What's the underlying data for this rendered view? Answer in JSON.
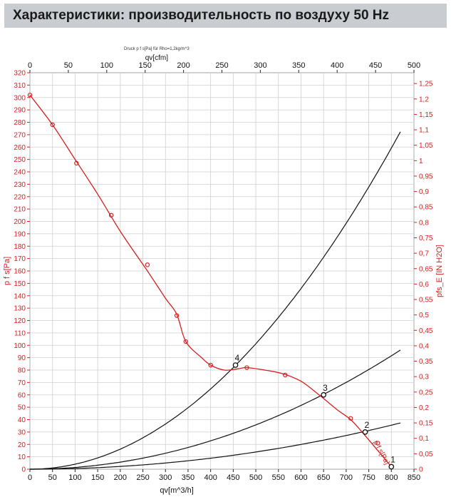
{
  "header": {
    "title": "Характеристики: производительность по воздуху 50 Hz"
  },
  "chart_data": {
    "type": "line",
    "note": "Druck p f s[Pa] für Rho=1,2kg/m^3",
    "x_axis": {
      "label": "qv[m^3/h]",
      "range": [
        0,
        850
      ],
      "ticks": [
        0,
        50,
        100,
        150,
        200,
        250,
        300,
        350,
        400,
        450,
        500,
        550,
        600,
        650,
        700,
        750,
        800,
        850
      ]
    },
    "x2_axis": {
      "label": "qv[cfm]",
      "range": [
        0,
        500
      ],
      "ticks": [
        0,
        50,
        100,
        150,
        200,
        250,
        300,
        350,
        400,
        450,
        500
      ]
    },
    "y_axis": {
      "label": "p f s[Pa]",
      "range": [
        0,
        320
      ],
      "ticks": [
        0,
        10,
        20,
        30,
        40,
        50,
        60,
        70,
        80,
        90,
        100,
        110,
        120,
        130,
        140,
        150,
        160,
        170,
        180,
        190,
        200,
        210,
        220,
        230,
        240,
        250,
        260,
        270,
        280,
        290,
        300,
        310,
        320
      ]
    },
    "y2_axis": {
      "label": "pfs_E [IN H2O]",
      "range": [
        0,
        1.285
      ],
      "ticks": [
        "0",
        "0,05",
        "0,1",
        "0,15",
        "0,2",
        "0,25",
        "0,3",
        "0,35",
        "0,4",
        "0,45",
        "0,5",
        "0,55",
        "0,6",
        "0,65",
        "0,7",
        "0,75",
        "0,8",
        "0,85",
        "0,9",
        "0,95",
        "1",
        "1,05",
        "1,1",
        "1,15",
        "1,2",
        "1,25"
      ]
    },
    "fan_curve": {
      "name": "p f s[Pa]",
      "color": "#d42020",
      "x": [
        0,
        50,
        100,
        150,
        200,
        260,
        300,
        325,
        345,
        380,
        400,
        430,
        460,
        480,
        520,
        560,
        600,
        640,
        680,
        710,
        740,
        770,
        800
      ],
      "y": [
        302,
        278,
        250,
        222,
        192,
        160,
        138,
        125,
        103,
        90,
        84,
        80,
        81,
        82,
        80,
        77,
        71,
        60,
        48,
        40,
        28,
        15,
        2
      ],
      "markers_x": [
        0,
        50,
        103,
        180,
        260,
        325,
        345,
        400,
        480,
        565,
        710,
        770
      ],
      "markers_y": [
        302,
        278,
        247,
        205,
        165,
        124,
        103,
        84,
        82,
        76,
        41,
        21
      ]
    },
    "system_curves": [
      {
        "label": "4",
        "color": "#111111",
        "k": 0.000405
      },
      {
        "label": "3",
        "color": "#111111",
        "k": 0.000143
      },
      {
        "label": "2",
        "color": "#111111",
        "k": 5.55e-05
      }
    ],
    "operating_points": [
      {
        "label": "4",
        "x": 455,
        "y": 84
      },
      {
        "label": "3",
        "x": 650,
        "y": 60
      },
      {
        "label": "2",
        "x": 742,
        "y": 30
      },
      {
        "label": "1",
        "x": 800,
        "y": 2
      }
    ],
    "grid": true
  }
}
